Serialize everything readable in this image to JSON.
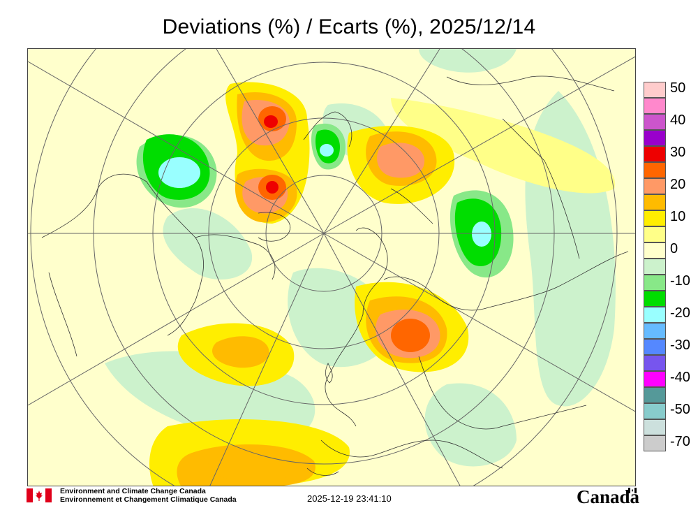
{
  "title": "Deviations (%) / Ecarts (%), 2025/12/14",
  "legend": {
    "items": [
      {
        "label": "50",
        "color": "#ffcccc"
      },
      {
        "label": "",
        "color": "#ff88cc"
      },
      {
        "label": "40",
        "color": "#cc55cc"
      },
      {
        "label": "",
        "color": "#9900cc"
      },
      {
        "label": "30",
        "color": "#ee0000"
      },
      {
        "label": "",
        "color": "#ff6600"
      },
      {
        "label": "20",
        "color": "#ff9966"
      },
      {
        "label": "",
        "color": "#ffbb00"
      },
      {
        "label": "10",
        "color": "#ffee00"
      },
      {
        "label": "",
        "color": "#ffff88"
      },
      {
        "label": "0",
        "color": "#ffffcc"
      },
      {
        "label": "",
        "color": "#ccf2cc"
      },
      {
        "label": "-10",
        "color": "#88e888"
      },
      {
        "label": "",
        "color": "#00dd00"
      },
      {
        "label": "-20",
        "color": "#99ffff"
      },
      {
        "label": "",
        "color": "#66bbff"
      },
      {
        "label": "-30",
        "color": "#5588ff"
      },
      {
        "label": "",
        "color": "#7755ee"
      },
      {
        "label": "-40",
        "color": "#ff00ff"
      },
      {
        "label": "",
        "color": "#559999"
      },
      {
        "label": "-50",
        "color": "#88cccc"
      },
      {
        "label": "",
        "color": "#cce0dd"
      },
      {
        "label": "-70",
        "color": "#cccccc"
      }
    ]
  },
  "footer": {
    "org_en": "Environment and Climate Change Canada",
    "org_fr": "Environnement et Changement Climatique Canada",
    "timestamp": "2025-12-19 23:41:10",
    "wordmark": "Canada"
  }
}
